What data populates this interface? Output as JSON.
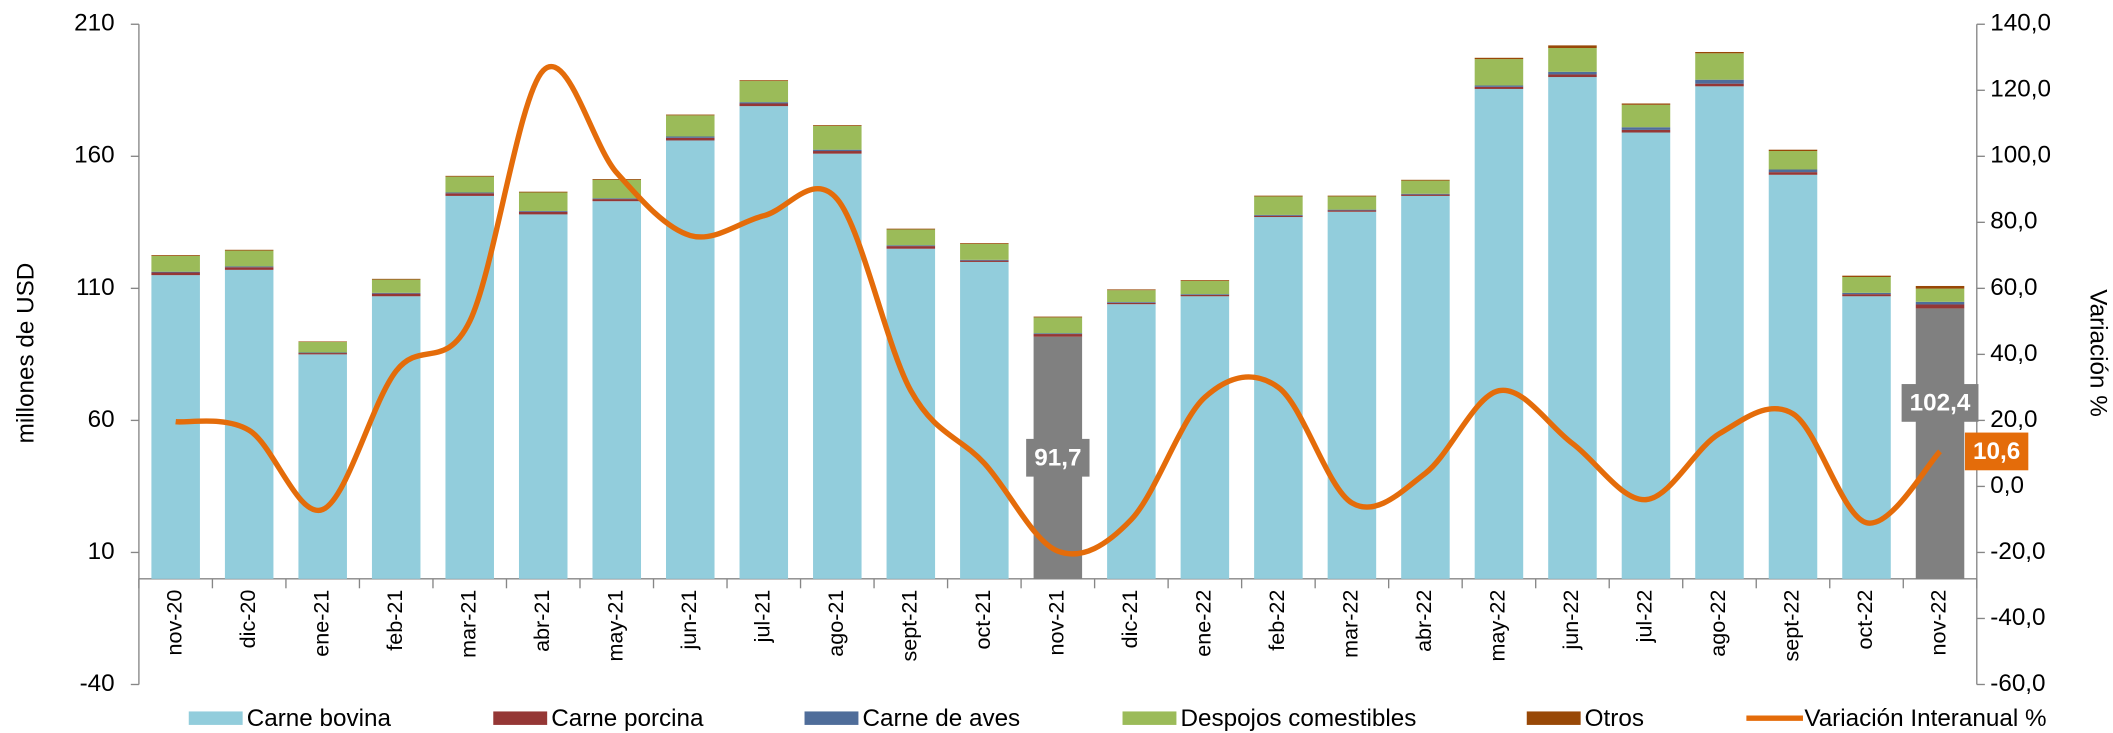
{
  "chart_data": {
    "type": "bar",
    "categories": [
      "nov-20",
      "dic-20",
      "ene-21",
      "feb-21",
      "mar-21",
      "abr-21",
      "may-21",
      "jun-21",
      "jul-21",
      "ago-21",
      "sept-21",
      "oct-21",
      "nov-21",
      "dic-21",
      "ene-22",
      "feb-22",
      "mar-22",
      "abr-22",
      "may-22",
      "jun-22",
      "jul-22",
      "ago-22",
      "sept-22",
      "oct-22",
      "nov-22"
    ],
    "stacked": true,
    "series": [
      {
        "name": "Carne bovina",
        "color": "#92cddc",
        "colors": [
          "#92cddc",
          "#92cddc",
          "#92cddc",
          "#92cddc",
          "#92cddc",
          "#92cddc",
          "#92cddc",
          "#92cddc",
          "#92cddc",
          "#92cddc",
          "#92cddc",
          "#92cddc",
          "#808080",
          "#92cddc",
          "#92cddc",
          "#92cddc",
          "#92cddc",
          "#92cddc",
          "#92cddc",
          "#92cddc",
          "#92cddc",
          "#92cddc",
          "#92cddc",
          "#92cddc",
          "#808080"
        ],
        "values": [
          115,
          117,
          85,
          107,
          145,
          138,
          143,
          166,
          179,
          161,
          125,
          120,
          91.7,
          104,
          107,
          137,
          139,
          145,
          185.5,
          190,
          169,
          186.5,
          153,
          107,
          102.4
        ],
        "value_labels": [
          null,
          null,
          null,
          null,
          null,
          null,
          null,
          null,
          null,
          null,
          null,
          null,
          "91,7",
          null,
          null,
          null,
          null,
          null,
          null,
          null,
          null,
          null,
          null,
          null,
          "102,4"
        ]
      },
      {
        "name": "Carne porcina",
        "color": "#953735",
        "values": [
          1,
          1,
          0.5,
          1,
          1,
          1,
          0.8,
          1,
          1,
          1,
          1,
          0.5,
          1,
          0.5,
          0.5,
          0.5,
          0.5,
          0.5,
          0.8,
          1,
          1,
          1,
          1,
          0.8,
          1.5
        ]
      },
      {
        "name": "Carne de aves",
        "color": "#4f6d9a",
        "values": [
          0.3,
          0.3,
          0.2,
          0.3,
          0.3,
          0.3,
          0.3,
          0.5,
          0.5,
          0.5,
          0.3,
          0.3,
          0.3,
          0.3,
          0.3,
          0.3,
          0.3,
          0.3,
          0.5,
          1,
          1,
          1.5,
          1,
          0.5,
          1
        ]
      },
      {
        "name": "Despojos comestibles",
        "color": "#9bbb59",
        "values": [
          6,
          6,
          4,
          5,
          6,
          7,
          7,
          8,
          8,
          9,
          6,
          6,
          6,
          4.5,
          5,
          7,
          5,
          5,
          10,
          9,
          8.5,
          10,
          7,
          6,
          5
        ]
      },
      {
        "name": "Otros",
        "color": "#984807",
        "values": [
          0.3,
          0.3,
          0.2,
          0.3,
          0.3,
          0.3,
          0.3,
          0.3,
          0.3,
          0.3,
          0.3,
          0.3,
          0.3,
          0.3,
          0.3,
          0.3,
          0.3,
          0.3,
          0.5,
          1,
          0.5,
          0.5,
          0.5,
          0.5,
          1
        ]
      },
      {
        "name": "Variación Interanual %",
        "color": "#e46c0a",
        "type": "line",
        "axis": "y2",
        "values": [
          19.6,
          17,
          -7,
          35,
          50,
          126,
          95,
          76,
          82,
          87,
          29,
          7,
          -19.6,
          -10,
          27,
          30,
          -5,
          4,
          29,
          13,
          -4,
          16,
          22,
          -11,
          10.6
        ],
        "value_labels": [
          null,
          null,
          null,
          null,
          null,
          null,
          null,
          null,
          null,
          null,
          null,
          null,
          null,
          null,
          null,
          null,
          null,
          null,
          null,
          null,
          null,
          null,
          null,
          null,
          "10,6"
        ]
      }
    ],
    "ylabel": "millones de  USD",
    "y2label": "Variación %",
    "ylim": [
      -40,
      210
    ],
    "yticks": [
      -40,
      10,
      60,
      110,
      160,
      210
    ],
    "y2lim": [
      -60,
      140
    ],
    "y2ticks": [
      {
        "value": -60,
        "label": "-60,0"
      },
      {
        "value": -40,
        "label": "-40,0"
      },
      {
        "value": -20,
        "label": "-20,0"
      },
      {
        "value": 0,
        "label": "0,0"
      },
      {
        "value": 20,
        "label": "20,0"
      },
      {
        "value": 40,
        "label": "40,0"
      },
      {
        "value": 60,
        "label": "60,0"
      },
      {
        "value": 80,
        "label": "80,0"
      },
      {
        "value": 100,
        "label": "100,0"
      },
      {
        "value": 120,
        "label": "120,0"
      },
      {
        "value": 140,
        "label": "140,0"
      }
    ],
    "grid": false,
    "legend": "bottom"
  }
}
